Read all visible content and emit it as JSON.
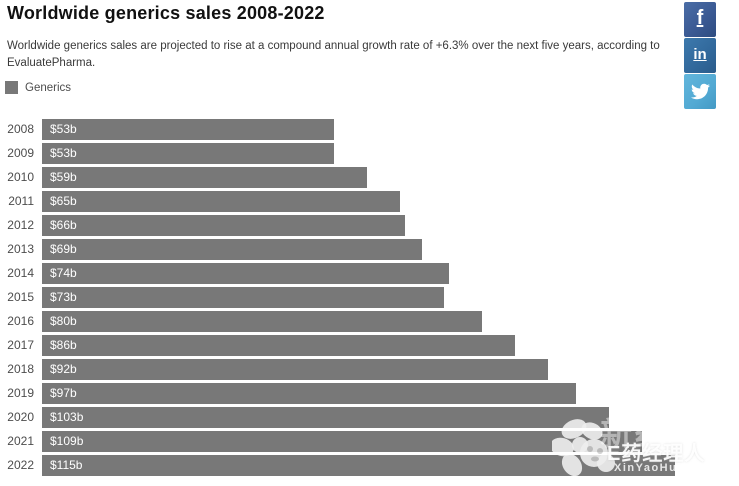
{
  "header": {
    "title": "Worldwide generics sales 2008-2022",
    "subtitle": "Worldwide generics sales are projected to rise at a compound annual growth rate of +6.3% over the next five years, according to EvaluatePharma."
  },
  "legend": {
    "label": "Generics",
    "swatch_color": "#787878"
  },
  "social_rail": {
    "facebook_label": "f",
    "linkedin_label": "in",
    "facebook_color": "#3b5a94",
    "linkedin_color": "#31689b",
    "twitter_color": "#52a9d3"
  },
  "chart_data": {
    "type": "bar",
    "orientation": "horizontal",
    "title": "Worldwide generics sales 2008-2022",
    "categories": [
      "2008",
      "2009",
      "2010",
      "2011",
      "2012",
      "2013",
      "2014",
      "2015",
      "2016",
      "2017",
      "2018",
      "2019",
      "2020",
      "2021",
      "2022"
    ],
    "series": [
      {
        "name": "Generics",
        "values": [
          53,
          53,
          59,
          65,
          66,
          69,
          74,
          73,
          80,
          86,
          92,
          97,
          103,
          109,
          115
        ],
        "labels": [
          "$53b",
          "$53b",
          "$59b",
          "$65b",
          "$66b",
          "$69b",
          "$74b",
          "$73b",
          "$80b",
          "$86b",
          "$92b",
          "$97b",
          "$103b",
          "$109b",
          "$115b"
        ],
        "color": "#787878"
      }
    ],
    "value_unit": "$ billions",
    "grid": false,
    "legend_position": "top-left",
    "value_labels_inside_bars": true
  },
  "watermark": {
    "background_text": "新药汇",
    "brand_text": "E药经理人",
    "site_text": "XinYaoHui.com"
  }
}
